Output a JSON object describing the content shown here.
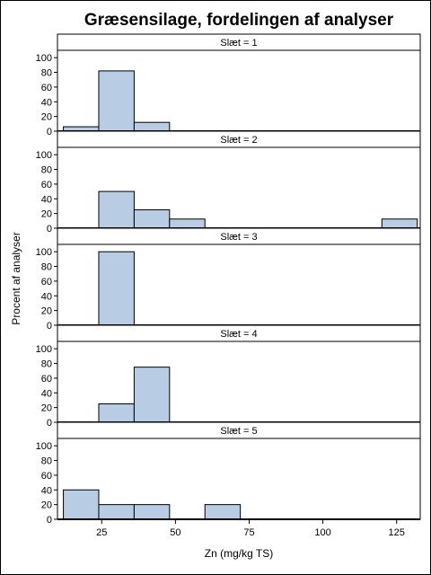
{
  "chart_data": {
    "type": "bar",
    "title": "Græsensilage, fordelingen af analyser",
    "xlabel": "Zn (mg/kg TS)",
    "ylabel": "Procent af analyser",
    "xlim": [
      10,
      133
    ],
    "ylim": [
      0,
      110
    ],
    "xticks": [
      25,
      50,
      75,
      100,
      125
    ],
    "yticks": [
      0,
      20,
      40,
      60,
      80,
      100
    ],
    "bin_width": 12,
    "grid": false,
    "colors": {
      "bar_fill": "#b8cce4",
      "bar_stroke": "#000000"
    },
    "panels": [
      {
        "label": "Slæt = 1",
        "bins": [
          {
            "start": 12,
            "value": 6
          },
          {
            "start": 24,
            "value": 82
          },
          {
            "start": 36,
            "value": 12
          }
        ]
      },
      {
        "label": "Slæt = 2",
        "bins": [
          {
            "start": 24,
            "value": 50
          },
          {
            "start": 36,
            "value": 25
          },
          {
            "start": 48,
            "value": 12.5
          },
          {
            "start": 120,
            "value": 12.5
          }
        ]
      },
      {
        "label": "Slæt = 3",
        "bins": [
          {
            "start": 24,
            "value": 100
          }
        ]
      },
      {
        "label": "Slæt = 4",
        "bins": [
          {
            "start": 24,
            "value": 25
          },
          {
            "start": 36,
            "value": 75
          }
        ]
      },
      {
        "label": "Slæt = 5",
        "bins": [
          {
            "start": 12,
            "value": 40
          },
          {
            "start": 24,
            "value": 20
          },
          {
            "start": 36,
            "value": 20
          },
          {
            "start": 60,
            "value": 20
          }
        ]
      }
    ]
  }
}
